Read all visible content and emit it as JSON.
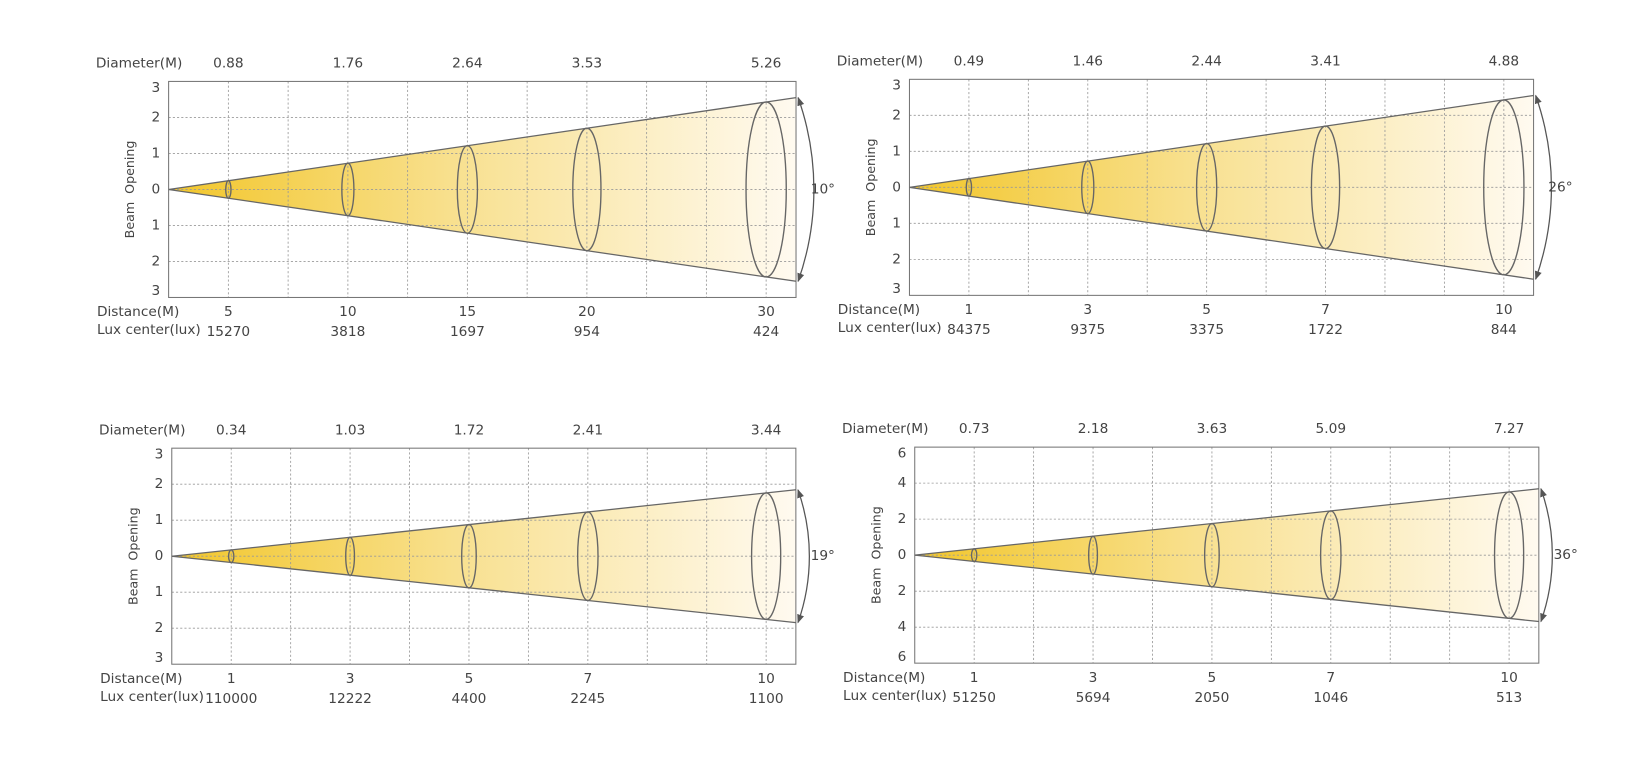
{
  "panels": [
    {
      "diameter_label": "Diameter(M)",
      "diameters": [
        0.88,
        1.76,
        2.64,
        3.53,
        5.26
      ],
      "y_label": "Beam  Opening",
      "y_ticks": [
        3,
        2,
        1,
        0,
        1,
        2,
        3
      ],
      "distance_label": "Distance(M)",
      "distances": [
        5,
        10,
        15,
        20,
        30
      ],
      "lux_label": "Lux center(lux)",
      "lux": [
        15270,
        3818,
        1697,
        954,
        424
      ],
      "angle": "10°"
    },
    {
      "diameter_label": "Diameter(M)",
      "diameters": [
        0.49,
        1.46,
        2.44,
        3.41,
        4.88
      ],
      "y_label": "Beam  Opening",
      "y_ticks": [
        3,
        2,
        1,
        0,
        1,
        2,
        3
      ],
      "distance_label": "Distance(M)",
      "distances": [
        1,
        3,
        5,
        7,
        10
      ],
      "lux_label": "Lux center(lux)",
      "lux": [
        84375,
        9375,
        3375,
        1722,
        844
      ],
      "angle": "26°"
    },
    {
      "diameter_label": "Diameter(M)",
      "diameters": [
        0.34,
        1.03,
        1.72,
        2.41,
        3.44
      ],
      "y_label": "Beam  Opening",
      "y_ticks": [
        3,
        2,
        1,
        0,
        1,
        2,
        3
      ],
      "distance_label": "Distance(M)",
      "distances": [
        1,
        3,
        5,
        7,
        10
      ],
      "lux_label": "Lux center(lux)",
      "lux": [
        110000,
        12222,
        4400,
        2245,
        1100
      ],
      "angle": "19°"
    },
    {
      "diameter_label": "Diameter(M)",
      "diameters": [
        0.73,
        2.18,
        3.63,
        5.09,
        7.27
      ],
      "y_label": "Beam  Opening",
      "y_ticks": [
        6,
        4,
        2,
        0,
        2,
        4,
        6
      ],
      "distance_label": "Distance(M)",
      "distances": [
        1,
        3,
        5,
        7,
        10
      ],
      "lux_label": "Lux center(lux)",
      "lux": [
        51250,
        5694,
        2050,
        1046,
        513
      ],
      "angle": "36°"
    }
  ]
}
